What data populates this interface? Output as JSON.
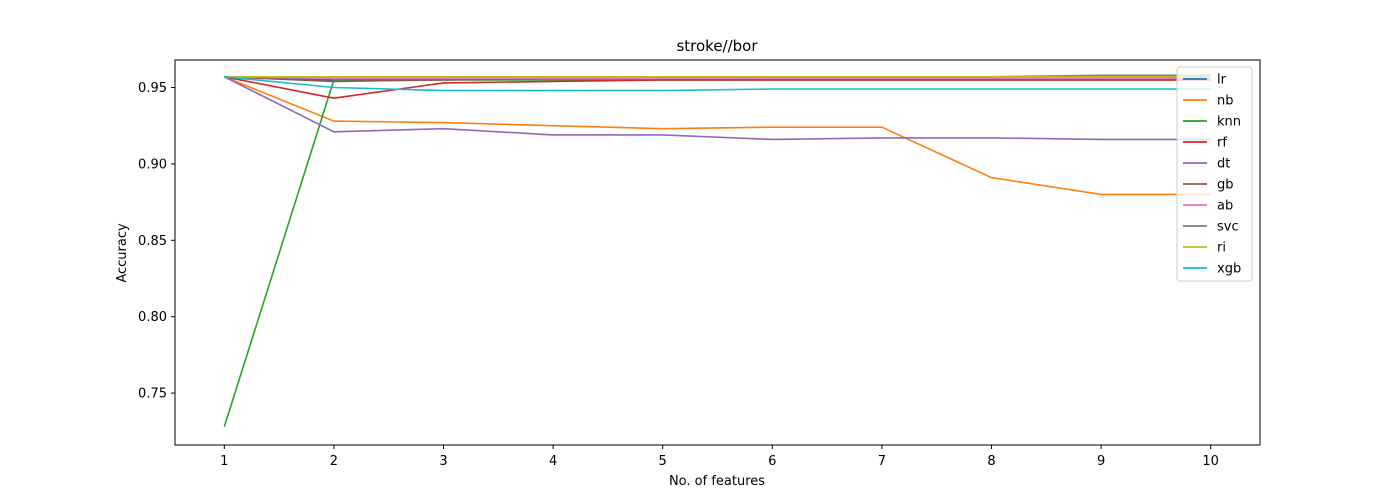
{
  "chart_data": {
    "type": "line",
    "title": "stroke//bor",
    "xlabel": "No. of features",
    "ylabel": "Accuracy",
    "x": [
      1,
      2,
      3,
      4,
      5,
      6,
      7,
      8,
      9,
      10
    ],
    "xlim": [
      0.55,
      10.45
    ],
    "ylim": [
      0.716,
      0.968
    ],
    "x_ticks": [
      "1",
      "2",
      "3",
      "4",
      "5",
      "6",
      "7",
      "8",
      "9",
      "10"
    ],
    "y_ticks": [
      {
        "value": 0.75,
        "label": "0.75"
      },
      {
        "value": 0.8,
        "label": "0.80"
      },
      {
        "value": 0.85,
        "label": "0.85"
      },
      {
        "value": 0.9,
        "label": "0.90"
      },
      {
        "value": 0.95,
        "label": "0.95"
      }
    ],
    "grid": false,
    "legend_position": "top-right",
    "series": [
      {
        "name": "lr",
        "color": "#1f77b4",
        "values": [
          0.957,
          0.955,
          0.956,
          0.956,
          0.956,
          0.956,
          0.956,
          0.956,
          0.957,
          0.957
        ]
      },
      {
        "name": "nb",
        "color": "#ff7f0e",
        "values": [
          0.957,
          0.928,
          0.927,
          0.925,
          0.923,
          0.924,
          0.924,
          0.891,
          0.88,
          0.88
        ]
      },
      {
        "name": "knn",
        "color": "#2ca02c",
        "values": [
          0.728,
          0.955,
          0.955,
          0.955,
          0.955,
          0.955,
          0.955,
          0.955,
          0.955,
          0.955
        ]
      },
      {
        "name": "rf",
        "color": "#d62728",
        "values": [
          0.957,
          0.943,
          0.953,
          0.954,
          0.955,
          0.955,
          0.955,
          0.955,
          0.955,
          0.955
        ]
      },
      {
        "name": "dt",
        "color": "#9467bd",
        "values": [
          0.957,
          0.921,
          0.923,
          0.919,
          0.919,
          0.916,
          0.917,
          0.917,
          0.916,
          0.916
        ]
      },
      {
        "name": "gb",
        "color": "#8c564b",
        "values": [
          0.957,
          0.954,
          0.955,
          0.956,
          0.956,
          0.956,
          0.956,
          0.956,
          0.956,
          0.956
        ]
      },
      {
        "name": "ab",
        "color": "#e377c2",
        "values": [
          0.957,
          0.956,
          0.956,
          0.956,
          0.956,
          0.956,
          0.956,
          0.956,
          0.956,
          0.956
        ]
      },
      {
        "name": "svc",
        "color": "#7f7f7f",
        "values": [
          0.957,
          0.957,
          0.957,
          0.957,
          0.957,
          0.957,
          0.957,
          0.957,
          0.958,
          0.958
        ]
      },
      {
        "name": "ri",
        "color": "#bcbd22",
        "values": [
          0.957,
          0.957,
          0.957,
          0.957,
          0.957,
          0.957,
          0.957,
          0.957,
          0.957,
          0.957
        ]
      },
      {
        "name": "xgb",
        "color": "#17becf",
        "values": [
          0.957,
          0.95,
          0.948,
          0.948,
          0.948,
          0.949,
          0.949,
          0.949,
          0.949,
          0.949
        ]
      }
    ]
  }
}
